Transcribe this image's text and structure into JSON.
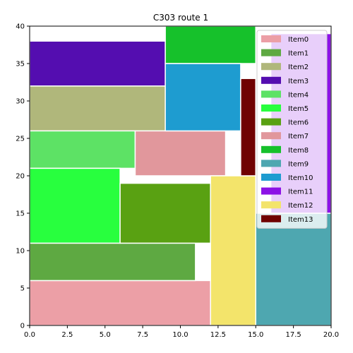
{
  "chart_data": {
    "type": "packing",
    "title": "C303 route 1",
    "xlim": [
      0,
      20
    ],
    "ylim": [
      0,
      40
    ],
    "x_ticks": [
      "0.0",
      "2.5",
      "5.0",
      "7.5",
      "10.0",
      "12.5",
      "15.0",
      "17.5",
      "20.0"
    ],
    "y_ticks": [
      "0",
      "5",
      "10",
      "15",
      "20",
      "25",
      "30",
      "35",
      "40"
    ],
    "grid": false,
    "legend_position": "top-right",
    "items": [
      {
        "name": "Item0",
        "x": 0,
        "y": 0,
        "w": 12,
        "h": 6,
        "color": "#ec9fa6"
      },
      {
        "name": "Item1",
        "x": 0,
        "y": 6,
        "w": 11,
        "h": 5,
        "color": "#5ea942"
      },
      {
        "name": "Item2",
        "x": 0,
        "y": 26,
        "w": 9,
        "h": 6,
        "color": "#b0b77b"
      },
      {
        "name": "Item3",
        "x": 0,
        "y": 32,
        "w": 9,
        "h": 6,
        "color": "#540db0"
      },
      {
        "name": "Item4",
        "x": 0,
        "y": 21,
        "w": 7,
        "h": 5,
        "color": "#5de265"
      },
      {
        "name": "Item5",
        "x": 0,
        "y": 11,
        "w": 6,
        "h": 10,
        "color": "#28ff3e"
      },
      {
        "name": "Item6",
        "x": 6,
        "y": 11,
        "w": 6,
        "h": 8,
        "color": "#59a112"
      },
      {
        "name": "Item7",
        "x": 7,
        "y": 20,
        "w": 6,
        "h": 6,
        "color": "#e1979c"
      },
      {
        "name": "Item8",
        "x": 9,
        "y": 35,
        "w": 6,
        "h": 5,
        "color": "#16c12b"
      },
      {
        "name": "Item9",
        "x": 15,
        "y": 0,
        "w": 5,
        "h": 15,
        "color": "#4ea7b0"
      },
      {
        "name": "Item10",
        "x": 9,
        "y": 26,
        "w": 5,
        "h": 9,
        "color": "#1e9cd0"
      },
      {
        "name": "Item11",
        "x": 16,
        "y": 15,
        "w": 4,
        "h": 24,
        "color": "#8c12e6"
      },
      {
        "name": "Item12",
        "x": 12,
        "y": 0,
        "w": 3,
        "h": 20,
        "color": "#f3e46b"
      },
      {
        "name": "Item13",
        "x": 14,
        "y": 20,
        "w": 1,
        "h": 13,
        "color": "#700202"
      }
    ]
  }
}
